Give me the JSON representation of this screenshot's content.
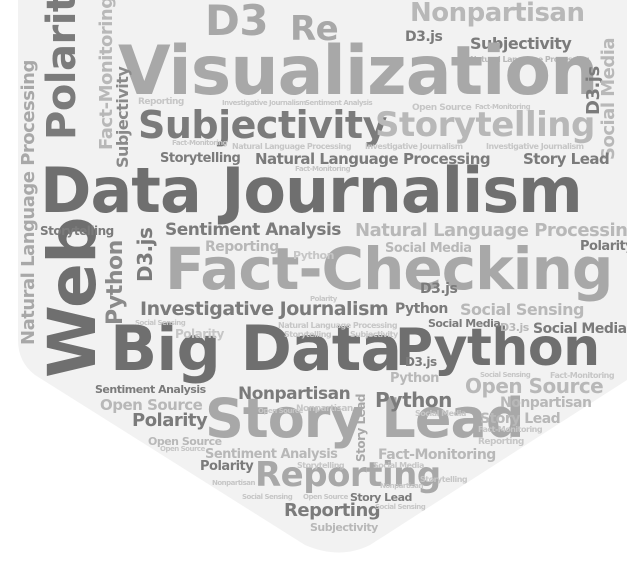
{
  "wordcloud": {
    "words": {
      "visualization": "Visualization",
      "data_journalism": "Data Journalism",
      "fact_checking": "Fact-Checking",
      "big_data": "Big Data",
      "python": "Python",
      "story_lead": "Story Lead",
      "reporting": "Reporting",
      "web": "Web",
      "subjectivity": "Subjectivity",
      "storytelling": "Storytelling",
      "nonpartisan": "Nonpartisan",
      "polarity": "Polarity",
      "fact_monitoring": "Fact-Monitoring",
      "open_source": "Open Source",
      "social_sensing": "Social Sensing",
      "social_media": "Social Media",
      "d3js": "D3.js",
      "nlp": "Natural Language Processing",
      "sentiment_analysis": "Sentiment Analysis",
      "investigative_journalism": "Investigative Journalism",
      "re_fragment": "Re",
      "d3_fragment": "D3"
    }
  }
}
